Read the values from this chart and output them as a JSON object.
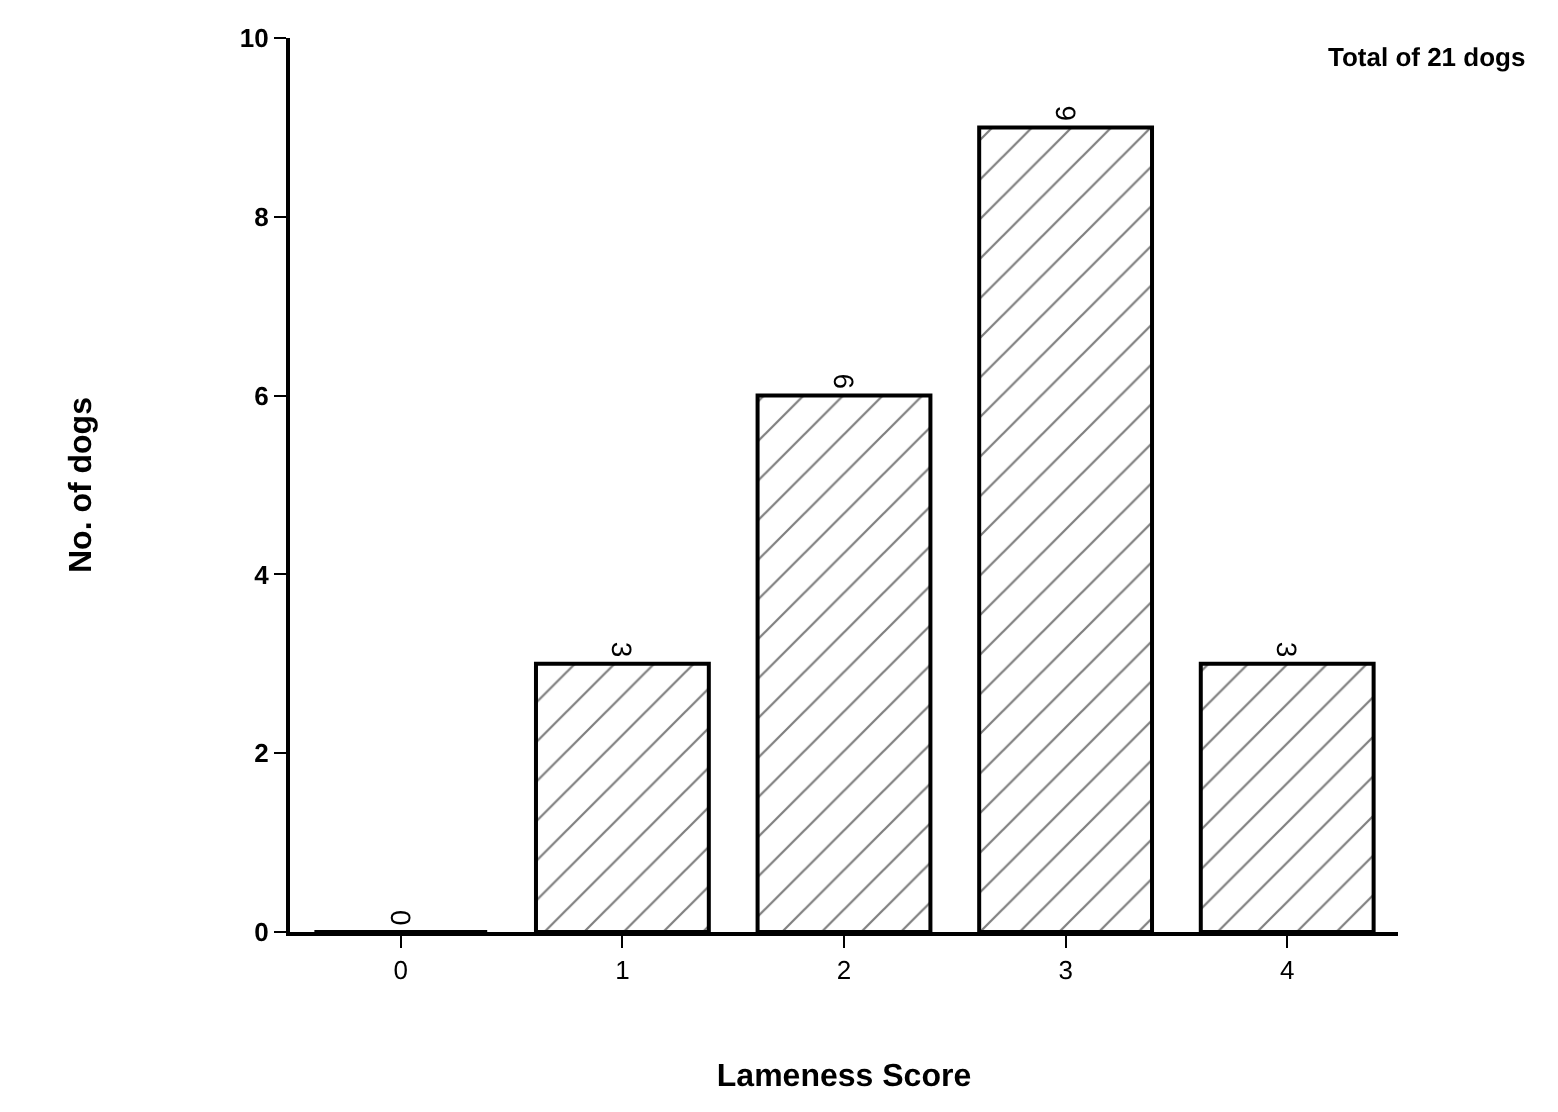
{
  "chart_data": {
    "type": "bar",
    "xlabel": "Lameness Score",
    "ylabel": "No. of dogs",
    "categories": [
      "0",
      "1",
      "2",
      "3",
      "4"
    ],
    "values": [
      0,
      3,
      6,
      9,
      3
    ],
    "color": "#000000",
    "ylim": [
      0,
      10
    ],
    "yticks": [
      0,
      2,
      4,
      6,
      8,
      10
    ],
    "data_labels": true,
    "annotations": [
      "Total of 21 dogs"
    ]
  }
}
